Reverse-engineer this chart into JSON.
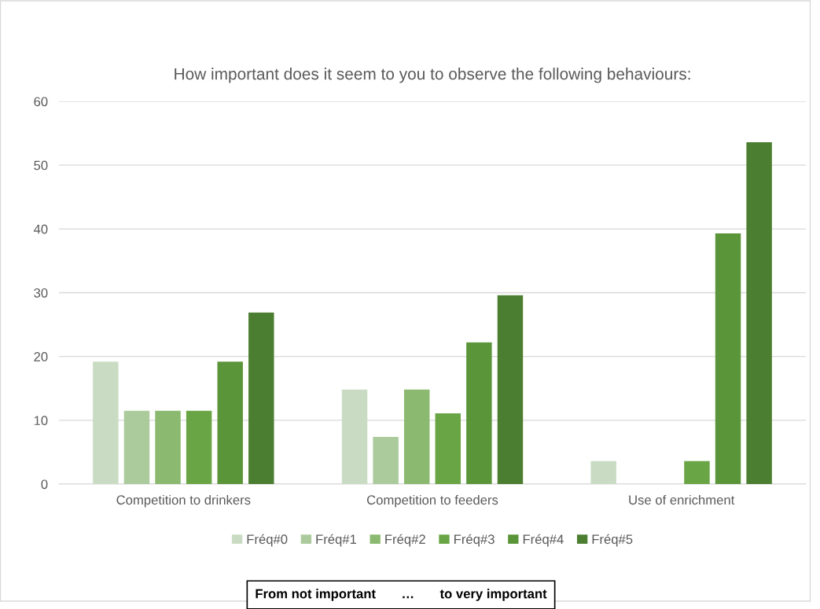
{
  "chart_data": {
    "type": "bar",
    "title": "How important does it seem to you to observe the following behaviours:",
    "categories": [
      "Competition to drinkers",
      "Competition to feeders",
      "Use of enrichment"
    ],
    "series": [
      {
        "name": "Fréq#0",
        "color": "#c9dcc3",
        "values": [
          19.2,
          14.8,
          3.6
        ]
      },
      {
        "name": "Fréq#1",
        "color": "#abcb9c",
        "values": [
          11.5,
          7.4,
          0
        ]
      },
      {
        "name": "Fréq#2",
        "color": "#8ab96f",
        "values": [
          11.5,
          14.8,
          0
        ]
      },
      {
        "name": "Fréq#3",
        "color": "#6aa545",
        "values": [
          11.5,
          11.1,
          3.6
        ]
      },
      {
        "name": "Fréq#4",
        "color": "#5a9539",
        "values": [
          19.2,
          22.2,
          39.3
        ]
      },
      {
        "name": "Fréq#5",
        "color": "#4c7e31",
        "values": [
          26.9,
          29.6,
          53.6
        ]
      }
    ],
    "ylim": [
      0,
      60
    ],
    "yticks": [
      0,
      10,
      20,
      30,
      40,
      50,
      60
    ],
    "grid": "y",
    "legend": "bottom",
    "annotations": [
      "From not important       …       to very important"
    ]
  }
}
